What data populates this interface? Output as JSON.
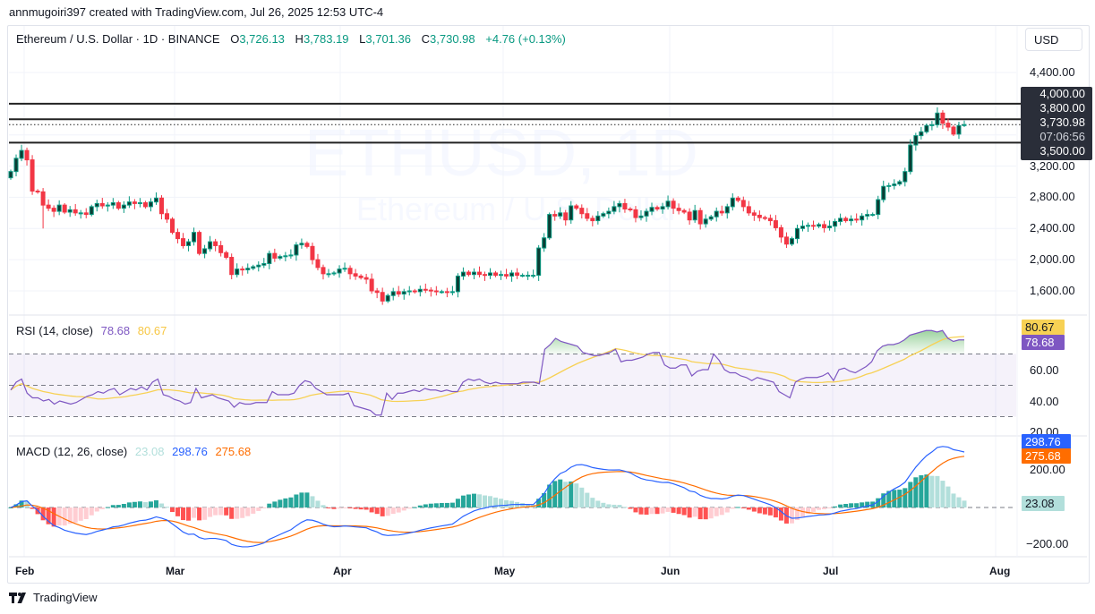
{
  "attribution": "annmugoiri397 created with TradingView.com, Jul 26, 2025 12:53 UTC-4",
  "legend": {
    "symbol": "Ethereum / U.S. Dollar · 1D · BINANCE",
    "open_label": "O",
    "open": "3,726.13",
    "high_label": "H",
    "high": "3,783.19",
    "low_label": "L",
    "low": "3,701.36",
    "close_label": "C",
    "close": "3,730.98",
    "change": "+4.76 (+0.13%)"
  },
  "currency_button": "USD",
  "watermark": {
    "ticker": "ETHUSD, 1D",
    "name": "Ethereum / U.S. Dollar"
  },
  "price_axis": {
    "ticks": [
      "4,400.00",
      "3,200.00",
      "2,800.00",
      "2,400.00",
      "2,000.00",
      "1,600.00"
    ],
    "tick_values": [
      4400,
      3200,
      2800,
      2400,
      2000,
      1600
    ]
  },
  "price_tags": {
    "level_4000": "4,000.00",
    "level_3800": "3,800.00",
    "last_price": "3,730.98",
    "countdown": "07:06:56",
    "level_3500": "3,500.00"
  },
  "horizontal_levels": [
    4000,
    3800,
    3500
  ],
  "rsi": {
    "title": "RSI (14, close)",
    "value": "78.68",
    "ma_value": "80.67",
    "axis_ticks": [
      "60.00",
      "40.00",
      "20.00"
    ],
    "bands": {
      "upper": 70,
      "middle": 50,
      "lower": 30
    }
  },
  "macd": {
    "title": "MACD (12, 26, close)",
    "histogram_value": "23.08",
    "macd_value": "298.76",
    "signal_value": "275.68",
    "axis_ticks": [
      "200.00",
      "−200.00"
    ]
  },
  "time_axis": [
    "Feb",
    "Mar",
    "Apr",
    "May",
    "Jun",
    "Jul",
    "Aug"
  ],
  "footer_logo": "TradingView",
  "colors": {
    "up": "#089981",
    "down": "#f23645",
    "rsi_line": "#7e57c2",
    "rsi_ma": "#f7d154",
    "macd_line": "#2962ff",
    "signal_line": "#ff6d00",
    "hist_up_strong": "#26a69a",
    "hist_up_weak": "#b2dfdb",
    "hist_down_strong": "#ff5252",
    "hist_down_weak": "#ffcdd2"
  },
  "chart_data": {
    "type": "candlestick",
    "title": "Ethereum / U.S. Dollar · 1D · BINANCE",
    "xlabel": "",
    "ylabel": "USD",
    "x_ticks": [
      "Feb",
      "Mar",
      "Apr",
      "May",
      "Jun",
      "Jul",
      "Aug"
    ],
    "ylim": [
      1400,
      4600
    ],
    "horizontal_lines": [
      4000,
      3800,
      3500
    ],
    "last": {
      "open": 3726.13,
      "high": 3783.19,
      "low": 3701.36,
      "close": 3730.98,
      "change": 4.76,
      "change_pct": 0.13
    },
    "closes_approx": [
      3130,
      3300,
      3400,
      3280,
      2880,
      2870,
      2700,
      2660,
      2620,
      2700,
      2610,
      2640,
      2600,
      2600,
      2580,
      2680,
      2720,
      2690,
      2700,
      2730,
      2660,
      2700,
      2740,
      2720,
      2730,
      2680,
      2740,
      2790,
      2590,
      2520,
      2350,
      2270,
      2180,
      2230,
      2350,
      2080,
      2140,
      2230,
      2180,
      2090,
      2030,
      1810,
      1880,
      1870,
      1890,
      1910,
      1930,
      1950,
      2080,
      2020,
      2040,
      2050,
      2060,
      2190,
      2210,
      2170,
      2000,
      1900,
      1820,
      1820,
      1830,
      1880,
      1890,
      1820,
      1790,
      1770,
      1750,
      1600,
      1580,
      1470,
      1540,
      1590,
      1560,
      1590,
      1600,
      1590,
      1620,
      1610,
      1600,
      1590,
      1590,
      1580,
      1590,
      1790,
      1840,
      1810,
      1840,
      1810,
      1800,
      1830,
      1800,
      1810,
      1790,
      1830,
      1800,
      1800,
      1800,
      1800,
      2150,
      2280,
      2580,
      2560,
      2600,
      2510,
      2690,
      2660,
      2590,
      2530,
      2500,
      2560,
      2590,
      2620,
      2680,
      2720,
      2650,
      2640,
      2540,
      2560,
      2620,
      2670,
      2650,
      2680,
      2750,
      2660,
      2630,
      2610,
      2510,
      2630,
      2460,
      2520,
      2550,
      2620,
      2600,
      2680,
      2790,
      2760,
      2680,
      2600,
      2570,
      2540,
      2530,
      2500,
      2410,
      2290,
      2200,
      2270,
      2400,
      2430,
      2440,
      2430,
      2450,
      2410,
      2430,
      2490,
      2530,
      2500,
      2520,
      2510,
      2560,
      2580,
      2580,
      2770,
      2940,
      2950,
      2970,
      3000,
      3130,
      3470,
      3590,
      3640,
      3720,
      3730,
      3880,
      3750,
      3700,
      3610,
      3720,
      3731
    ],
    "rsi_series": {
      "name": "RSI (14, close)",
      "last": 78.68,
      "ma_last": 80.67,
      "ylim": [
        20,
        80
      ],
      "bands": [
        30,
        50,
        70
      ],
      "points_approx": [
        47,
        52,
        54,
        45,
        42,
        42,
        40,
        41,
        38,
        40,
        39,
        38,
        39,
        41,
        43,
        44,
        46,
        45,
        47,
        48,
        44,
        46,
        48,
        47,
        49,
        47,
        52,
        54,
        44,
        43,
        41,
        40,
        38,
        39,
        48,
        42,
        43,
        44,
        42,
        41,
        40,
        36,
        39,
        38,
        38,
        39,
        39,
        39,
        46,
        44,
        44,
        44,
        45,
        50,
        53,
        52,
        48,
        46,
        44,
        44,
        44,
        44,
        45,
        37,
        36,
        35,
        34,
        31,
        31,
        45,
        41,
        45,
        45,
        46,
        47,
        46,
        48,
        47,
        47,
        46,
        47,
        46,
        46,
        52,
        54,
        53,
        54,
        52,
        51,
        52,
        51,
        51,
        51,
        51,
        52,
        52,
        52,
        51,
        73,
        76,
        80,
        78,
        77,
        76,
        75,
        71,
        70,
        69,
        69,
        70,
        71,
        73,
        65,
        66,
        66,
        67,
        68,
        70,
        71,
        71,
        63,
        61,
        61,
        63,
        63,
        56,
        59,
        60,
        60,
        70,
        66,
        60,
        58,
        58,
        56,
        55,
        53,
        55,
        54,
        53,
        52,
        46,
        44,
        42,
        52,
        54,
        55,
        55,
        55,
        56,
        58,
        53,
        60,
        61,
        59,
        58,
        60,
        62,
        65,
        72,
        75,
        76,
        76,
        77,
        79,
        82,
        83,
        84,
        85,
        85,
        84,
        85,
        80,
        78,
        79,
        79
      ]
    },
    "macd_series": {
      "name": "MACD (12, 26, close)",
      "macd_last": 298.76,
      "signal_last": 275.68,
      "hist_last": 23.08,
      "ylim": [
        -260,
        380
      ]
    }
  }
}
